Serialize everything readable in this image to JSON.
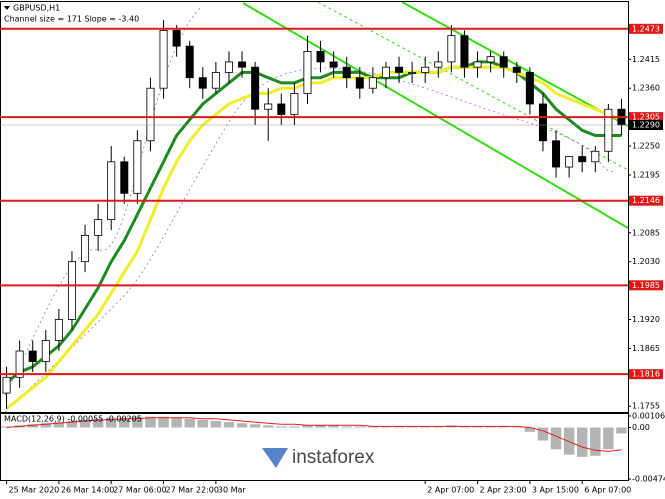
{
  "chart_data": [
    {
      "type": "candlestick",
      "title": "GBPUSD,H1",
      "subtitle": "Channel size = 171  Slope = -3.40",
      "categories": [
        "25 Mar 2020",
        null,
        null,
        null,
        "26 Mar 14:00",
        null,
        null,
        null,
        "27 Mar 06:00",
        null,
        null,
        null,
        "27 Mar 22:00",
        null,
        null,
        null,
        "30 Mar",
        null,
        null,
        null,
        null,
        null,
        null,
        null,
        null,
        null,
        null,
        null,
        null,
        null,
        null,
        null,
        "2 Apr 07:00",
        null,
        null,
        null,
        "2 Apr 23:00",
        null,
        null,
        null,
        "3 Apr 15:00",
        null,
        null,
        null,
        "6 Apr 07:00",
        null,
        null,
        null
      ],
      "open": [
        1.178,
        1.181,
        1.186,
        1.184,
        1.188,
        1.192,
        1.203,
        1.208,
        1.211,
        1.222,
        1.216,
        1.226,
        1.236,
        1.247,
        1.244,
        1.238,
        1.236,
        1.239,
        1.241,
        1.24,
        1.232,
        1.233,
        1.231,
        1.235,
        1.243,
        1.241,
        1.24,
        1.238,
        1.236,
        1.238,
        1.24,
        1.239,
        1.239,
        1.24,
        1.241,
        1.246,
        1.24,
        1.241,
        1.242,
        1.24,
        1.239,
        1.233,
        1.226,
        1.221,
        1.223,
        1.222,
        1.224,
        1.232
      ],
      "high": [
        1.183,
        1.188,
        1.188,
        1.19,
        1.194,
        1.205,
        1.21,
        1.214,
        1.225,
        1.223,
        1.228,
        1.238,
        1.249,
        1.248,
        1.245,
        1.24,
        1.241,
        1.243,
        1.243,
        1.241,
        1.236,
        1.235,
        1.237,
        1.246,
        1.245,
        1.243,
        1.242,
        1.24,
        1.24,
        1.241,
        1.242,
        1.241,
        1.242,
        1.243,
        1.248,
        1.247,
        1.243,
        1.243,
        1.243,
        1.241,
        1.24,
        1.235,
        1.228,
        1.223,
        1.225,
        1.225,
        1.233,
        1.234
      ],
      "low": [
        1.175,
        1.179,
        1.182,
        1.182,
        1.186,
        1.19,
        1.201,
        1.205,
        1.209,
        1.214,
        1.214,
        1.224,
        1.234,
        1.242,
        1.236,
        1.234,
        1.235,
        1.237,
        1.238,
        1.229,
        1.226,
        1.229,
        1.229,
        1.233,
        1.239,
        1.238,
        1.236,
        1.234,
        1.235,
        1.236,
        1.237,
        1.237,
        1.237,
        1.238,
        1.239,
        1.238,
        1.238,
        1.239,
        1.238,
        1.237,
        1.231,
        1.224,
        1.219,
        1.219,
        1.22,
        1.22,
        1.222,
        1.227
      ],
      "close": [
        1.181,
        1.186,
        1.184,
        1.188,
        1.192,
        1.203,
        1.208,
        1.211,
        1.222,
        1.216,
        1.226,
        1.236,
        1.247,
        1.244,
        1.238,
        1.236,
        1.239,
        1.241,
        1.24,
        1.232,
        1.233,
        1.231,
        1.235,
        1.243,
        1.241,
        1.24,
        1.238,
        1.236,
        1.238,
        1.24,
        1.239,
        1.239,
        1.24,
        1.241,
        1.246,
        1.24,
        1.241,
        1.242,
        1.24,
        1.239,
        1.233,
        1.226,
        1.221,
        1.223,
        1.222,
        1.224,
        1.232,
        1.229
      ],
      "color_up": "#ffffff",
      "color_down": "#000000",
      "lines": [
        {
          "color": "#1f8a1f",
          "values": [
            1.18,
            1.182,
            1.183,
            1.185,
            1.187,
            1.19,
            1.194,
            1.198,
            1.203,
            1.207,
            1.212,
            1.217,
            1.222,
            1.227,
            1.23,
            1.233,
            1.235,
            1.237,
            1.239,
            1.239,
            1.238,
            1.237,
            1.237,
            1.238,
            1.238,
            1.239,
            1.239,
            1.239,
            1.238,
            1.238,
            1.238,
            1.239,
            1.239,
            1.239,
            1.24,
            1.24,
            1.241,
            1.241,
            1.24,
            1.239,
            1.237,
            1.235,
            1.232,
            1.23,
            1.228,
            1.227,
            1.227,
            1.227
          ]
        },
        {
          "color": "#f0ee2a",
          "values": [
            1.175,
            1.177,
            1.179,
            1.181,
            1.184,
            1.187,
            1.19,
            1.193,
            1.197,
            1.201,
            1.205,
            1.211,
            1.217,
            1.222,
            1.226,
            1.229,
            1.231,
            1.233,
            1.234,
            1.235,
            1.235,
            1.236,
            1.236,
            1.237,
            1.237,
            1.238,
            1.238,
            1.238,
            1.238,
            1.239,
            1.239,
            1.239,
            1.239,
            1.239,
            1.24,
            1.24,
            1.24,
            1.24,
            1.24,
            1.239,
            1.238,
            1.237,
            1.235,
            1.234,
            1.233,
            1.232,
            1.231,
            1.23
          ]
        }
      ],
      "levels": [
        1.2473,
        1.2305,
        1.2146,
        1.1985,
        1.1816
      ],
      "level_color": "#e01818",
      "current_price": {
        "value": 1.229,
        "label": "1.2290"
      },
      "ylim": [
        1.1744,
        1.2524
      ],
      "yticks": [
        1.2415,
        {
          "value": 1.236,
          "label": "1.2360"
        },
        {
          "value": 1.225,
          "label": "1.2250"
        },
        1.2195,
        1.2085,
        {
          "value": 1.203,
          "label": "1.2030"
        },
        {
          "value": 1.192,
          "label": "1.1920"
        },
        1.1865,
        1.1755
      ]
    },
    {
      "type": "macd",
      "title": "MACD(12,26,9) -0.00055 -0.00205",
      "histogram": [
        0.0001,
        0.0002,
        0.0003,
        0.0004,
        0.0005,
        0.0006,
        0.0007,
        0.0008,
        0.0009,
        0.0009,
        0.001,
        0.001,
        0.001,
        0.0009,
        0.0008,
        0.0007,
        0.0006,
        0.0005,
        0.0004,
        0.0003,
        0.0002,
        0.0001,
        0.0001,
        0.0002,
        0.0002,
        0.0002,
        0.0001,
        0.0001,
        0.0001,
        0.0001,
        0.0001,
        0.0001,
        0.0001,
        0.0001,
        0.0002,
        0.0001,
        0.0001,
        0.0001,
        0.0001,
        0,
        -0.0004,
        -0.0012,
        -0.002,
        -0.0025,
        -0.0027,
        -0.0026,
        -0.002,
        -0.00055
      ],
      "signal": [
        0,
        0.0001,
        0.0002,
        0.0003,
        0.0004,
        0.0005,
        0.0006,
        0.0007,
        0.0007,
        0.0008,
        0.0008,
        0.0009,
        0.0009,
        0.0009,
        0.0009,
        0.0008,
        0.0008,
        0.0007,
        0.0006,
        0.0005,
        0.0004,
        0.0003,
        0.0003,
        0.0002,
        0.0002,
        0.0002,
        0.0002,
        0.0002,
        0.0001,
        0.0001,
        0.0001,
        0.0001,
        0.0001,
        0.0001,
        0.0001,
        0.0001,
        0.0001,
        0.0001,
        0.0001,
        0.0001,
        0,
        -0.0003,
        -0.0008,
        -0.0013,
        -0.0018,
        -0.0021,
        -0.0022,
        -0.00205
      ],
      "hist_color": "#b4b4b4",
      "signal_color": "#e02020",
      "ylim": [
        -0.00474,
        0.00106
      ],
      "yticks": [
        0.00106,
        {
          "value": 0,
          "label": "0.00"
        },
        -0.00474
      ]
    }
  ],
  "watermark": "instaforex"
}
